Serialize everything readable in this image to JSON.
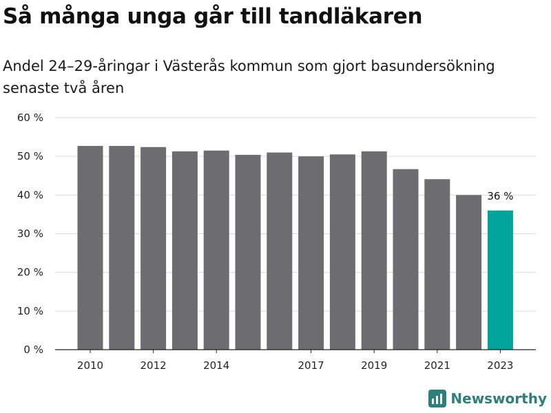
{
  "header": {
    "title": "Så många unga går till tandläkaren",
    "subtitle": "Andel 24–29-åringar i Västerås kommun som gjort basundersökning senaste två åren"
  },
  "branding": {
    "name": "Newsworthy",
    "icon": "newsworthy-logo-icon",
    "color": "#2d7f7b"
  },
  "colors": {
    "bar": "#6d6c71",
    "highlight": "#00a49a",
    "grid": "#d9d9d9",
    "axis": "#222222"
  },
  "chart_data": {
    "type": "bar",
    "title": "Så många unga går till tandläkaren",
    "subtitle": "Andel 24–29-åringar i Västerås kommun som gjort basundersökning senaste två åren",
    "xlabel": "",
    "ylabel": "",
    "categories": [
      "2010",
      "2011",
      "2012",
      "2013",
      "2014",
      "2015",
      "2016",
      "2017",
      "2018",
      "2019",
      "2020",
      "2021",
      "2022",
      "2023"
    ],
    "x_tick_labels": [
      "2010",
      "2012",
      "2014",
      "2017",
      "2019",
      "2021",
      "2023"
    ],
    "values": [
      52.7,
      52.7,
      52.4,
      51.3,
      51.5,
      50.4,
      51.0,
      50.0,
      50.5,
      51.3,
      46.7,
      44.1,
      40.0,
      36.0
    ],
    "highlight_index": 13,
    "data_labels": [
      {
        "index": 13,
        "text": "36 %"
      }
    ],
    "y_ticks": [
      0,
      10,
      20,
      30,
      40,
      50,
      60
    ],
    "y_tick_labels": [
      "0 %",
      "10 %",
      "20 %",
      "30 %",
      "40 %",
      "50 %",
      "60 %"
    ],
    "ylim": [
      0,
      60
    ],
    "grid": true,
    "legend": "none"
  }
}
